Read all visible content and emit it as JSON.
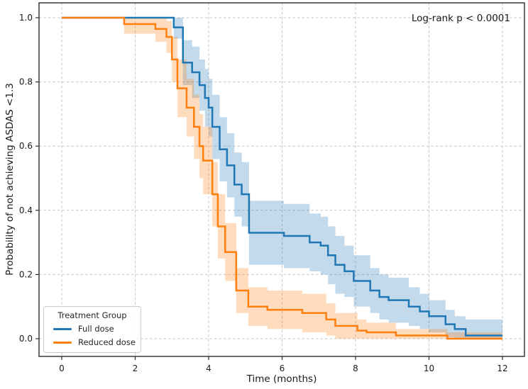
{
  "chart_data": {
    "type": "line",
    "subtype": "kaplan-meier-step-with-confidence-bands",
    "title": "",
    "annotation": "Log-rank p < 0.0001",
    "xlabel": "Time (months)",
    "ylabel": "Probability of not achieving ASDAS <1.3",
    "xlim": [
      -0.7,
      12.7
    ],
    "ylim": [
      -0.05,
      1.05
    ],
    "grid": true,
    "grid_style": "dashed",
    "legend_position": "lower left",
    "legend_title": "Treatment Group",
    "x_ticks": [
      {
        "v": 0,
        "label": "0"
      },
      {
        "v": 2,
        "label": "2"
      },
      {
        "v": 4,
        "label": "4"
      },
      {
        "v": 6,
        "label": "6"
      },
      {
        "v": 8,
        "label": "8"
      },
      {
        "v": 10,
        "label": "10"
      },
      {
        "v": 12,
        "label": "12"
      }
    ],
    "y_ticks": [
      {
        "v": 0.0,
        "label": "0.0"
      },
      {
        "v": 0.2,
        "label": "0.2"
      },
      {
        "v": 0.4,
        "label": "0.4"
      },
      {
        "v": 0.6,
        "label": "0.6"
      },
      {
        "v": 0.8,
        "label": "0.8"
      },
      {
        "v": 1.0,
        "label": "1.0"
      }
    ],
    "point_format": [
      "time_months",
      "probability",
      "ci_lower",
      "ci_upper"
    ],
    "series": [
      {
        "name": "Full dose",
        "color": "#1f77b4",
        "band_color": "rgba(31,119,180,0.27)",
        "points": [
          [
            0.0,
            1.0,
            1.0,
            1.0
          ],
          [
            3.05,
            0.97,
            0.935,
            1.0
          ],
          [
            3.3,
            0.86,
            0.79,
            0.93
          ],
          [
            3.55,
            0.83,
            0.75,
            0.91
          ],
          [
            3.75,
            0.79,
            0.71,
            0.87
          ],
          [
            3.9,
            0.75,
            0.66,
            0.84
          ],
          [
            4.0,
            0.72,
            0.63,
            0.81
          ],
          [
            4.1,
            0.66,
            0.56,
            0.76
          ],
          [
            4.3,
            0.59,
            0.49,
            0.69
          ],
          [
            4.5,
            0.54,
            0.44,
            0.64
          ],
          [
            4.7,
            0.48,
            0.38,
            0.58
          ],
          [
            4.9,
            0.45,
            0.35,
            0.55
          ],
          [
            5.1,
            0.33,
            0.23,
            0.43
          ],
          [
            6.05,
            0.32,
            0.22,
            0.42
          ],
          [
            6.75,
            0.3,
            0.21,
            0.39
          ],
          [
            7.05,
            0.29,
            0.2,
            0.38
          ],
          [
            7.25,
            0.26,
            0.17,
            0.35
          ],
          [
            7.45,
            0.23,
            0.14,
            0.32
          ],
          [
            7.7,
            0.21,
            0.13,
            0.29
          ],
          [
            7.95,
            0.18,
            0.1,
            0.26
          ],
          [
            8.4,
            0.15,
            0.08,
            0.22
          ],
          [
            8.65,
            0.13,
            0.06,
            0.2
          ],
          [
            8.9,
            0.12,
            0.05,
            0.19
          ],
          [
            9.45,
            0.1,
            0.04,
            0.16
          ],
          [
            9.75,
            0.085,
            0.03,
            0.14
          ],
          [
            10.0,
            0.07,
            0.02,
            0.12
          ],
          [
            10.45,
            0.045,
            0.005,
            0.09
          ],
          [
            10.7,
            0.03,
            0.0,
            0.07
          ],
          [
            11.0,
            0.01,
            0.0,
            0.06
          ],
          [
            12.0,
            0.01,
            0.0,
            0.06
          ]
        ]
      },
      {
        "name": "Reduced dose",
        "color": "#ff7f0e",
        "band_color": "rgba(255,127,14,0.27)",
        "points": [
          [
            0.0,
            1.0,
            1.0,
            1.0
          ],
          [
            1.7,
            0.98,
            0.95,
            1.0
          ],
          [
            2.55,
            0.965,
            0.925,
            1.0
          ],
          [
            2.85,
            0.94,
            0.89,
            0.99
          ],
          [
            3.0,
            0.87,
            0.8,
            0.94
          ],
          [
            3.15,
            0.78,
            0.69,
            0.87
          ],
          [
            3.4,
            0.72,
            0.63,
            0.81
          ],
          [
            3.6,
            0.66,
            0.56,
            0.76
          ],
          [
            3.75,
            0.6,
            0.5,
            0.7
          ],
          [
            3.85,
            0.555,
            0.45,
            0.66
          ],
          [
            4.1,
            0.45,
            0.35,
            0.55
          ],
          [
            4.25,
            0.35,
            0.25,
            0.45
          ],
          [
            4.45,
            0.27,
            0.18,
            0.36
          ],
          [
            4.75,
            0.15,
            0.08,
            0.22
          ],
          [
            5.08,
            0.1,
            0.04,
            0.16
          ],
          [
            5.6,
            0.09,
            0.03,
            0.15
          ],
          [
            6.55,
            0.08,
            0.02,
            0.14
          ],
          [
            7.2,
            0.06,
            0.01,
            0.11
          ],
          [
            7.45,
            0.04,
            0.0,
            0.08
          ],
          [
            8.05,
            0.025,
            0.0,
            0.06
          ],
          [
            8.3,
            0.02,
            0.0,
            0.05
          ],
          [
            9.1,
            0.01,
            0.0,
            0.03
          ],
          [
            10.5,
            0.0,
            0.0,
            0.02
          ],
          [
            12.0,
            0.0,
            0.0,
            0.02
          ]
        ]
      }
    ]
  }
}
